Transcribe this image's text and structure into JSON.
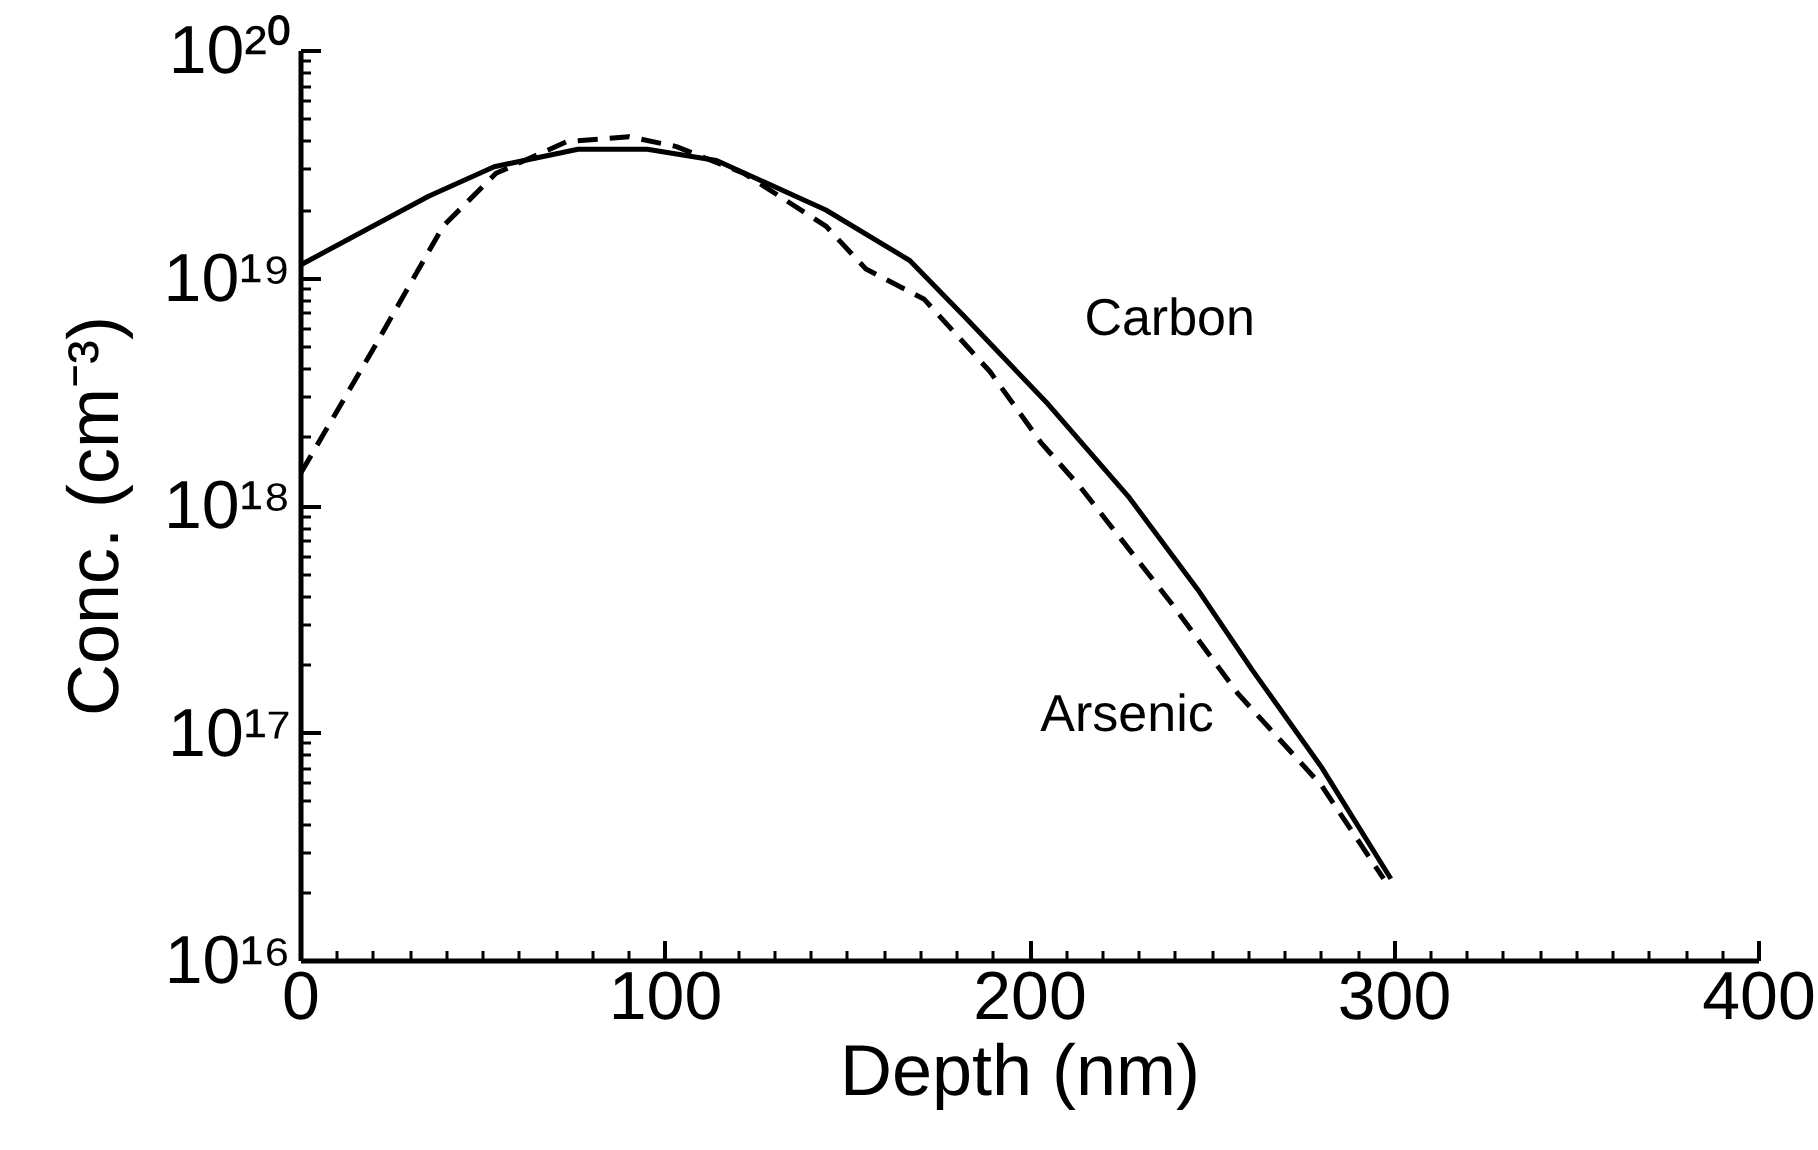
{
  "chart_data": {
    "type": "line",
    "xlabel": "Depth  (nm)",
    "ylabel": "Conc.  (cm⁻³)",
    "log": "y",
    "xlim": [
      0,
      400
    ],
    "xticks": [
      0,
      100,
      200,
      300,
      400
    ],
    "ylim": [
      1e+16,
      1e+20
    ],
    "yticks": [
      {
        "value": 1e+16,
        "label": "10¹⁶"
      },
      {
        "value": 1e+17,
        "label": "10¹⁷"
      },
      {
        "value": 1e+18,
        "label": "10¹⁸"
      },
      {
        "value": 1e+19,
        "label": "10¹⁹"
      },
      {
        "value": 1e+20,
        "label": "10²⁰"
      }
    ],
    "series": [
      {
        "name": "Carbon",
        "color": "#000000",
        "line_style": "solid",
        "x": [
          0,
          35,
          53,
          76,
          95,
          114,
          144,
          167,
          182,
          205,
          227,
          246,
          261,
          280,
          299
        ],
        "values": [
          1.15e+19,
          2.3e+19,
          3.1e+19,
          3.7e+19,
          3.7e+19,
          3.3e+19,
          2e+19,
          1.2e+19,
          6.8e+18,
          2.8e+18,
          1.1e+18,
          4.3e+17,
          1.9e+17,
          7.1e+16,
          2.3e+16
        ]
      },
      {
        "name": "Arsenic",
        "color": "#000000",
        "line_style": "dashed",
        "x": [
          0,
          19.5,
          39,
          53.5,
          73,
          90,
          103,
          121.5,
          144,
          155,
          171,
          189,
          203,
          214,
          239,
          257,
          280,
          297
        ],
        "values": [
          1.4e+18,
          4.8e+18,
          1.7e+19,
          2.9e+19,
          4e+19,
          4.2e+19,
          3.8e+19,
          2.9e+19,
          1.7e+19,
          1.1e+19,
          8.1e+18,
          3.9e+18,
          1.9e+18,
          1.2e+18,
          3.7e+17,
          1.5e+17,
          5.9e+16,
          2.3e+16
        ]
      }
    ]
  }
}
